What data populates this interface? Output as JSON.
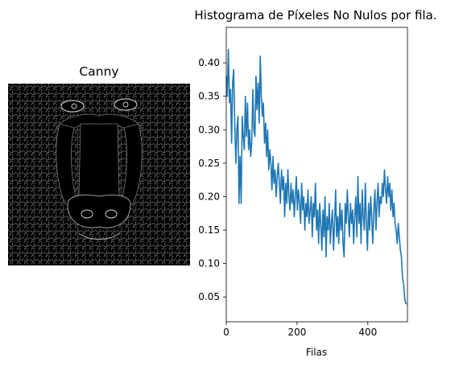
{
  "left_panel": {
    "title": "Canny"
  },
  "chart_data": {
    "type": "line",
    "title": "Histograma de Píxeles No Nulos por fila.",
    "xlabel": "Filas",
    "ylabel": "",
    "xlim": [
      0,
      512
    ],
    "ylim": [
      0.013,
      0.453
    ],
    "xticks": [
      0,
      200,
      400
    ],
    "yticks": [
      0.05,
      0.1,
      0.15,
      0.2,
      0.25,
      0.3,
      0.35,
      0.4
    ],
    "ytick_labels": [
      "0.05",
      "0.10",
      "0.15",
      "0.20",
      "0.25",
      "0.30",
      "0.35",
      "0.40"
    ],
    "grid": false,
    "series": [
      {
        "color": "#1f77b4",
        "x": [
          0,
          3,
          6,
          9,
          12,
          15,
          18,
          21,
          24,
          27,
          30,
          33,
          36,
          39,
          42,
          45,
          48,
          51,
          54,
          57,
          60,
          63,
          66,
          69,
          72,
          75,
          78,
          81,
          84,
          87,
          90,
          93,
          96,
          99,
          102,
          105,
          108,
          111,
          114,
          117,
          120,
          123,
          126,
          129,
          132,
          135,
          138,
          141,
          144,
          147,
          150,
          153,
          156,
          159,
          162,
          165,
          168,
          171,
          174,
          177,
          180,
          183,
          186,
          189,
          192,
          195,
          198,
          201,
          204,
          207,
          210,
          213,
          216,
          219,
          222,
          225,
          228,
          231,
          234,
          237,
          240,
          243,
          246,
          249,
          252,
          255,
          258,
          261,
          264,
          267,
          270,
          273,
          276,
          279,
          282,
          285,
          288,
          291,
          294,
          297,
          300,
          303,
          306,
          309,
          312,
          315,
          318,
          321,
          324,
          327,
          330,
          333,
          336,
          339,
          342,
          345,
          348,
          351,
          354,
          357,
          360,
          363,
          366,
          369,
          372,
          375,
          378,
          381,
          384,
          387,
          390,
          393,
          396,
          399,
          402,
          405,
          408,
          411,
          414,
          417,
          420,
          423,
          426,
          429,
          432,
          435,
          438,
          441,
          444,
          447,
          450,
          453,
          456,
          459,
          462,
          465,
          468,
          471,
          474,
          477,
          480,
          483,
          486,
          489,
          492,
          495,
          498,
          501,
          504,
          507,
          510
        ],
        "y": [
          0.38,
          0.35,
          0.42,
          0.34,
          0.36,
          0.28,
          0.37,
          0.39,
          0.31,
          0.25,
          0.3,
          0.32,
          0.19,
          0.26,
          0.19,
          0.32,
          0.29,
          0.27,
          0.35,
          0.29,
          0.34,
          0.27,
          0.3,
          0.26,
          0.28,
          0.36,
          0.3,
          0.29,
          0.38,
          0.33,
          0.37,
          0.31,
          0.41,
          0.35,
          0.32,
          0.34,
          0.28,
          0.31,
          0.26,
          0.3,
          0.24,
          0.27,
          0.25,
          0.21,
          0.26,
          0.22,
          0.24,
          0.2,
          0.23,
          0.25,
          0.22,
          0.19,
          0.24,
          0.21,
          0.23,
          0.17,
          0.22,
          0.19,
          0.24,
          0.2,
          0.18,
          0.22,
          0.19,
          0.21,
          0.17,
          0.2,
          0.23,
          0.18,
          0.21,
          0.19,
          0.16,
          0.22,
          0.18,
          0.2,
          0.15,
          0.19,
          0.17,
          0.21,
          0.16,
          0.18,
          0.2,
          0.14,
          0.19,
          0.17,
          0.22,
          0.15,
          0.18,
          0.13,
          0.19,
          0.16,
          0.12,
          0.18,
          0.14,
          0.2,
          0.11,
          0.17,
          0.15,
          0.19,
          0.13,
          0.16,
          0.18,
          0.12,
          0.16,
          0.21,
          0.14,
          0.17,
          0.13,
          0.19,
          0.15,
          0.18,
          0.13,
          0.11,
          0.19,
          0.16,
          0.21,
          0.17,
          0.14,
          0.19,
          0.16,
          0.18,
          0.13,
          0.17,
          0.2,
          0.14,
          0.23,
          0.16,
          0.19,
          0.13,
          0.21,
          0.17,
          0.15,
          0.22,
          0.16,
          0.12,
          0.19,
          0.15,
          0.2,
          0.17,
          0.13,
          0.18,
          0.21,
          0.15,
          0.19,
          0.22,
          0.17,
          0.2,
          0.19,
          0.22,
          0.2,
          0.24,
          0.21,
          0.19,
          0.23,
          0.2,
          0.22,
          0.18,
          0.21,
          0.17,
          0.19,
          0.16,
          0.15,
          0.13,
          0.16,
          0.14,
          0.12,
          0.11,
          0.08,
          0.07,
          0.05,
          0.04,
          0.04
        ]
      }
    ]
  }
}
